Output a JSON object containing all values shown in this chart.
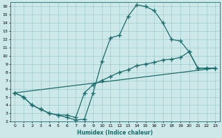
{
  "xlabel": "Humidex (Indice chaleur)",
  "xlim": [
    -0.5,
    23.5
  ],
  "ylim": [
    2,
    16.5
  ],
  "xticks": [
    0,
    1,
    2,
    3,
    4,
    5,
    6,
    7,
    8,
    9,
    10,
    11,
    12,
    13,
    14,
    15,
    16,
    17,
    18,
    19,
    20,
    21,
    22,
    23
  ],
  "yticks": [
    2,
    3,
    4,
    5,
    6,
    7,
    8,
    9,
    10,
    11,
    12,
    13,
    14,
    15,
    16
  ],
  "bg_color": "#cde8e8",
  "grid_color": "#a0cccc",
  "line_color": "#1a6b6b",
  "curve1_x": [
    0,
    1,
    2,
    3,
    4,
    5,
    6,
    7,
    8,
    9,
    10,
    11,
    12,
    13,
    14,
    15,
    16,
    17,
    18,
    19,
    20,
    21,
    22,
    23
  ],
  "curve1_y": [
    5.5,
    5.0,
    4.0,
    3.5,
    3.0,
    2.8,
    2.5,
    2.2,
    2.3,
    5.5,
    9.3,
    12.2,
    12.5,
    14.8,
    16.2,
    16.0,
    15.5,
    14.0,
    12.0,
    11.8,
    10.5,
    8.5,
    8.5,
    8.5
  ],
  "curve2_x": [
    0,
    1,
    2,
    3,
    4,
    5,
    6,
    7,
    8,
    9,
    10,
    11,
    12,
    13,
    14,
    15,
    16,
    17,
    18,
    19,
    20,
    21,
    22,
    23
  ],
  "curve2_y": [
    5.5,
    5.0,
    4.0,
    3.5,
    3.0,
    2.8,
    2.8,
    2.5,
    5.5,
    6.5,
    7.0,
    7.5,
    8.0,
    8.3,
    8.8,
    9.0,
    9.2,
    9.5,
    9.6,
    9.8,
    10.5,
    8.5,
    8.5,
    8.5
  ],
  "line3_x": [
    0,
    23
  ],
  "line3_y": [
    5.5,
    8.5
  ],
  "marker": "+",
  "marker_size": 4,
  "lw": 0.9
}
